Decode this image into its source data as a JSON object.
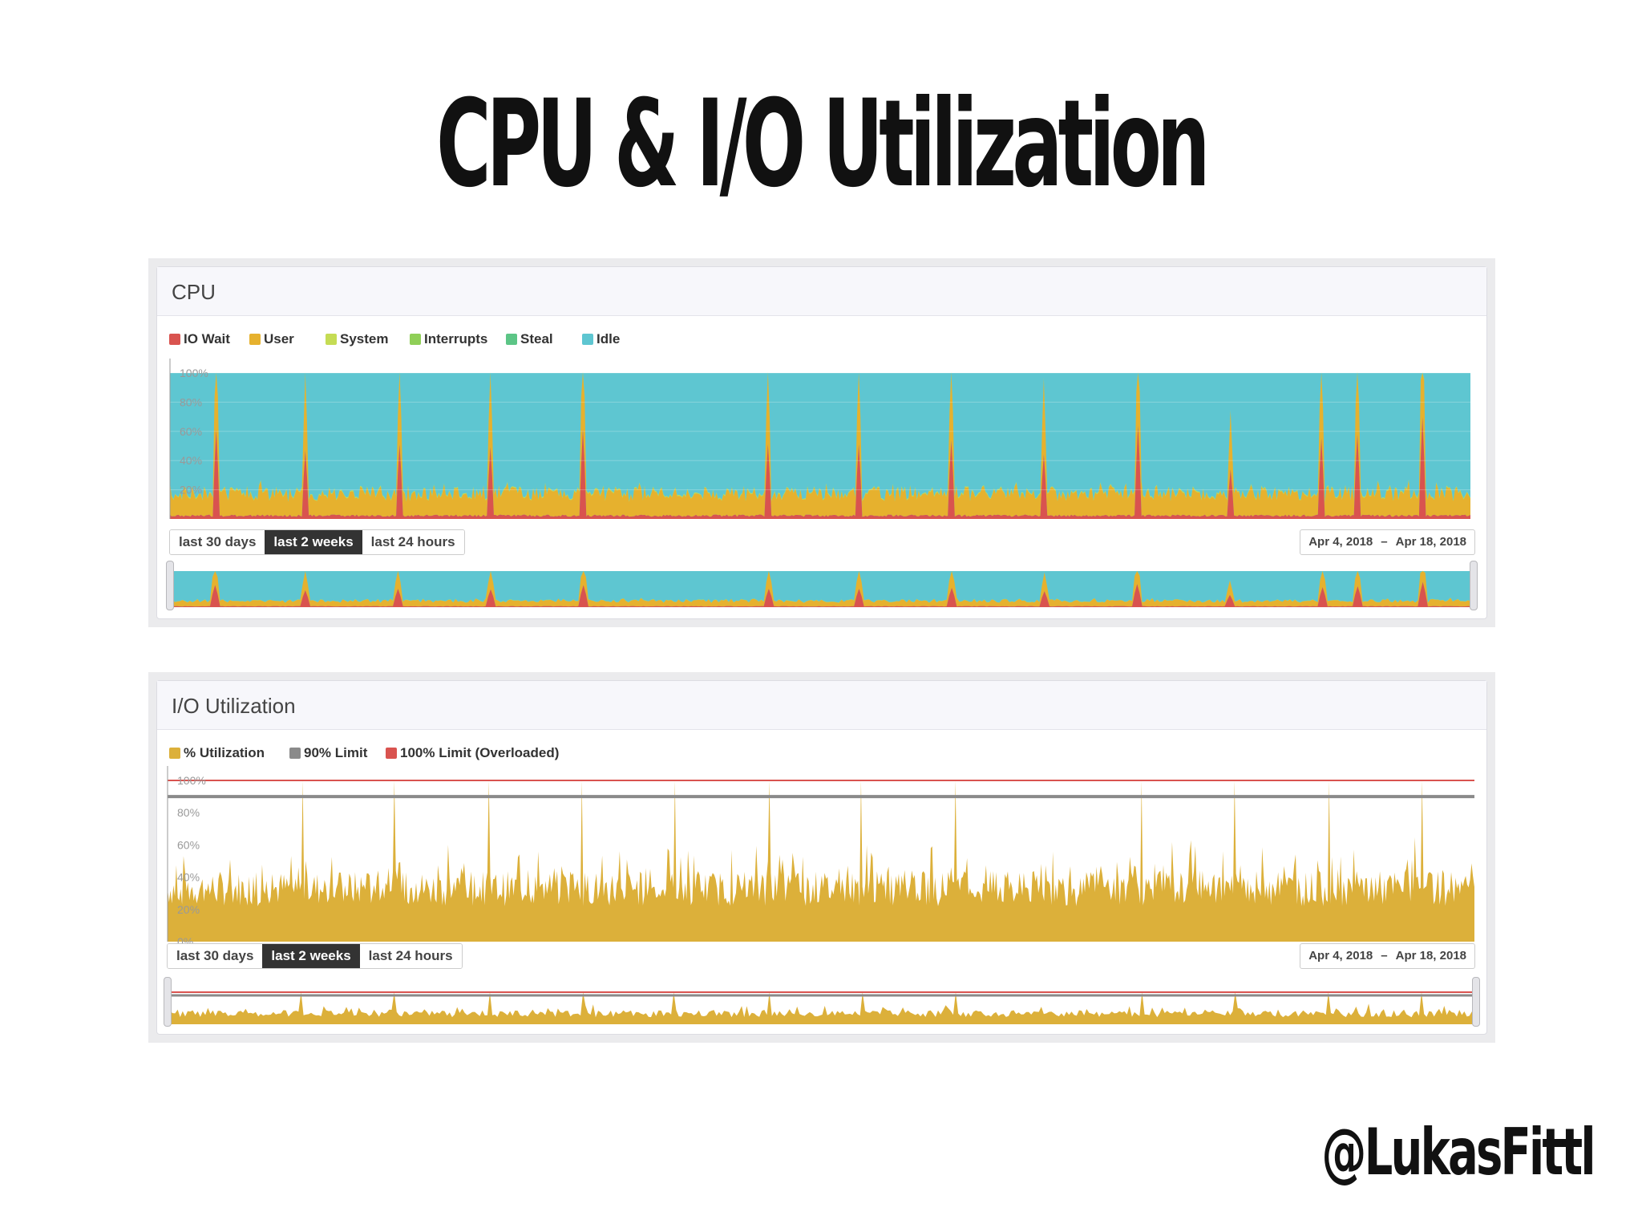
{
  "slide": {
    "title": "CPU & I/O Utilization",
    "handle": "@LukasFittl"
  },
  "cpu": {
    "title": "CPU",
    "legend": [
      {
        "label": "IO Wait",
        "color": "#d9534f"
      },
      {
        "label": "User",
        "color": "#e6b12e"
      },
      {
        "label": "System",
        "color": "#c5dc54"
      },
      {
        "label": "Interrupts",
        "color": "#8fcf57"
      },
      {
        "label": "Steal",
        "color": "#5cc586"
      },
      {
        "label": "Idle",
        "color": "#5ec6d1"
      }
    ],
    "range_buttons": [
      "last 30 days",
      "last 2 weeks",
      "last 24 hours"
    ],
    "active_range": "last 2 weeks",
    "date_from": "Apr 4, 2018",
    "date_sep": "–",
    "date_to": "Apr 18, 2018"
  },
  "io": {
    "title": "I/O Utilization",
    "legend": [
      {
        "label": "% Utilization",
        "color": "#dcb03a"
      },
      {
        "label": "90% Limit",
        "color": "#8a8a8a"
      },
      {
        "label": "100% Limit (Overloaded)",
        "color": "#d9534f"
      }
    ],
    "range_buttons": [
      "last 30 days",
      "last 2 weeks",
      "last 24 hours"
    ],
    "active_range": "last 2 weeks",
    "date_from": "Apr 4, 2018",
    "date_sep": "–",
    "date_to": "Apr 18, 2018"
  },
  "chart_data": [
    {
      "type": "area",
      "title": "CPU",
      "stacked": true,
      "x_range": [
        "Apr 4, 2018",
        "Apr 18, 2018"
      ],
      "ylim": [
        0,
        100
      ],
      "y_ticks": [
        "100%",
        "80%",
        "60%",
        "40%",
        "20%"
      ],
      "grid": true,
      "legend_placement": "top-left",
      "series": [
        {
          "name": "IO Wait",
          "color": "#d9534f",
          "baseline": 2,
          "peak": 66
        },
        {
          "name": "User",
          "color": "#e6b12e",
          "baseline": 14,
          "peak": 78
        },
        {
          "name": "System",
          "color": "#c5dc54",
          "baseline": 0.6
        },
        {
          "name": "Interrupts",
          "color": "#8fcf57",
          "baseline": 0
        },
        {
          "name": "Steal",
          "color": "#5cc586",
          "baseline": 0
        },
        {
          "name": "Idle",
          "color": "#5ec6d1",
          "baseline": 83
        }
      ],
      "spike_count": 14,
      "spike_peak_values": [
        72,
        55,
        60,
        58,
        72,
        60,
        60,
        63,
        52,
        75,
        40,
        65,
        68,
        82
      ]
    },
    {
      "type": "area",
      "title": "I/O Utilization",
      "x_range": [
        "Apr 4, 2018",
        "Apr 18, 2018"
      ],
      "ylim": [
        0,
        100
      ],
      "y_ticks": [
        "100%",
        "80%",
        "60%",
        "40%",
        "20%",
        "0%"
      ],
      "grid": true,
      "legend_placement": "top-left",
      "series": [
        {
          "name": "% Utilization",
          "color": "#dcb03a",
          "baseline": 35,
          "typical_range": [
            20,
            60
          ],
          "peak": 100
        },
        {
          "name": "90% Limit",
          "color": "#8a8a8a",
          "value": 90
        },
        {
          "name": "100% Limit (Overloaded)",
          "color": "#d9534f",
          "value": 100
        }
      ],
      "spike_count": 14,
      "spike_peak_values": [
        100,
        100,
        100,
        100,
        100,
        100,
        100,
        100,
        100,
        100,
        100,
        100,
        100,
        100
      ]
    }
  ]
}
